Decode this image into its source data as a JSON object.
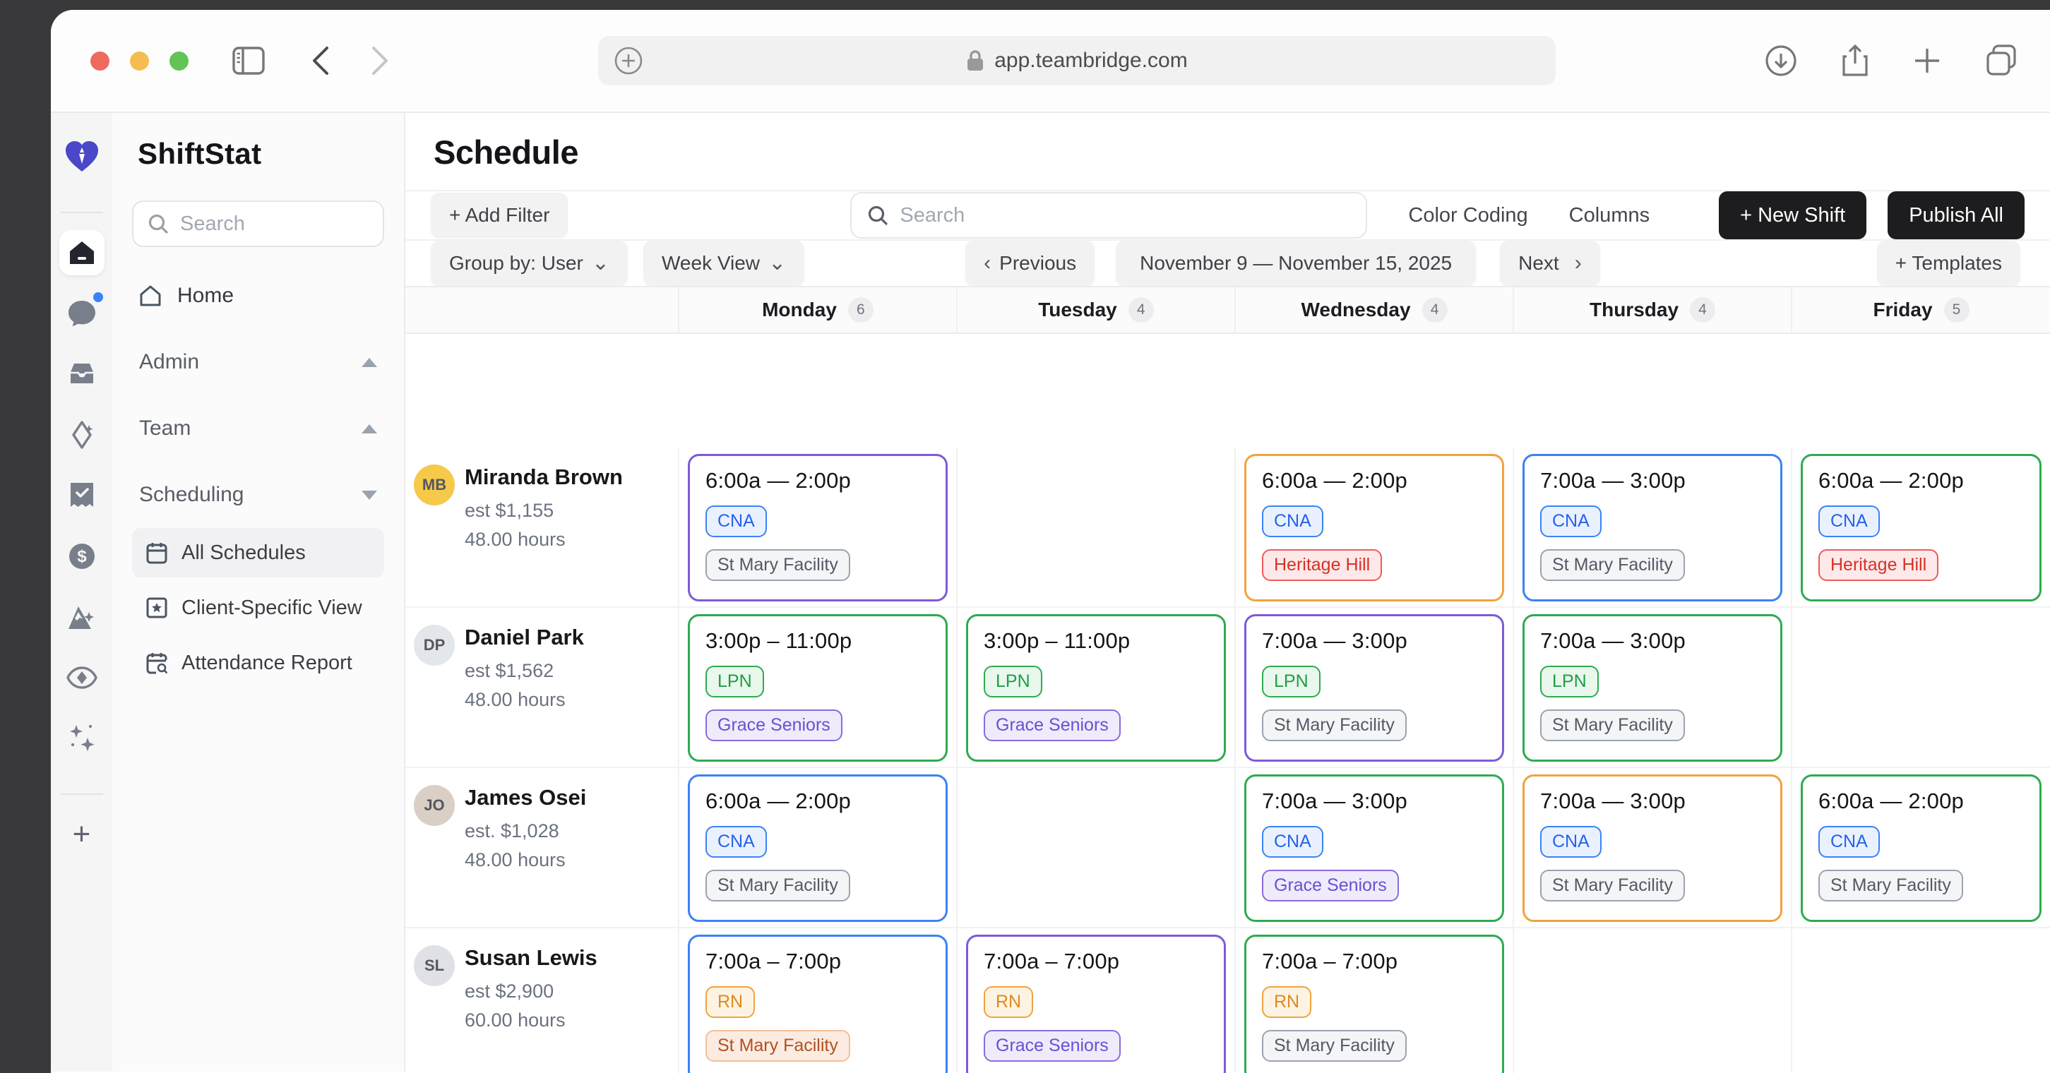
{
  "browser": {
    "url": "app.teambridge.com",
    "icons": [
      "sidebar-toggle",
      "back",
      "forward",
      "page-plus",
      "lock",
      "download",
      "share",
      "new-tab",
      "tab-overview"
    ]
  },
  "sidebar": {
    "logo_text": "ShiftStat",
    "search_placeholder": "Search",
    "home_label": "Home",
    "sections": [
      {
        "label": "Admin",
        "state": "collapsed"
      },
      {
        "label": "Team",
        "state": "collapsed"
      },
      {
        "label": "Scheduling",
        "state": "expanded"
      }
    ],
    "scheduling_items": [
      {
        "label": "All Schedules",
        "icon": "calendar",
        "active": true
      },
      {
        "label": "Client-Specific View",
        "icon": "star-square",
        "active": false
      },
      {
        "label": "Attendance Report",
        "icon": "calendar-search",
        "active": false
      }
    ],
    "rail_icons": [
      "shiftstat-logo",
      "home",
      "chat",
      "inbox",
      "diamond",
      "ticket-check",
      "dollar",
      "mountain",
      "eye",
      "sparkles",
      "add"
    ]
  },
  "page": {
    "title": "Schedule"
  },
  "filter_bar": {
    "add_filter": "+ Add Filter",
    "search_placeholder": "Search",
    "color_coding": "Color Coding",
    "columns": "Columns",
    "new_shift": "+ New Shift",
    "publish_all": "Publish All"
  },
  "toolbar": {
    "group_by": "Group by: User",
    "view": "Week View",
    "previous": "Previous",
    "date_range": "November 9 —  November 15, 2025",
    "next": "Next",
    "templates": "+ Templates"
  },
  "week": {
    "days": [
      {
        "label": "Monday",
        "count": "6"
      },
      {
        "label": "Tuesday",
        "count": "4"
      },
      {
        "label": "Wednesday",
        "count": "4"
      },
      {
        "label": "Thursday",
        "count": "4"
      },
      {
        "label": "Friday",
        "count": "5"
      }
    ]
  },
  "palette": {
    "card": {
      "purple": "#7d5bd8",
      "blue": "#3b82f6",
      "green": "#2eab4f",
      "orange": "#f0a33f"
    },
    "badge": {
      "blue": {
        "border": "#3b82f6",
        "bg": "#eaf1fe",
        "text": "#2563eb"
      },
      "green": {
        "border": "#2eab4f",
        "bg": "#e9f7ed",
        "text": "#1f9e45"
      },
      "orange": {
        "border": "#f0a33f",
        "bg": "#fdf3e2",
        "text": "#dd8a1e"
      },
      "red": {
        "border": "#ee5b5b",
        "bg": "#fde9e9",
        "text": "#d93025"
      },
      "purple": {
        "border": "#8b6ae0",
        "bg": "#efebfb",
        "text": "#6d4fd2"
      },
      "gray": {
        "border": "#9ca3af",
        "bg": "#f4f5f7",
        "text": "#525a65"
      },
      "peach": {
        "border": "#f3c09a",
        "bg": "#fcebe0",
        "text": "#b05223"
      }
    }
  },
  "users": [
    {
      "name": "Miranda Brown",
      "estimate": "est $1,155",
      "hours": "48.00 hours",
      "initials": "MB",
      "avatar_bg": "#f6c94a",
      "shifts": [
        {
          "time": "6:00a — 2:00p",
          "card": "purple",
          "role": "CNA",
          "role_variant": "blue",
          "facility": "St Mary Facility",
          "facility_variant": "gray"
        },
        null,
        {
          "time": "6:00a — 2:00p",
          "card": "orange",
          "role": "CNA",
          "role_variant": "blue",
          "facility": "Heritage Hill",
          "facility_variant": "red"
        },
        {
          "time": "7:00a — 3:00p",
          "card": "blue",
          "role": "CNA",
          "role_variant": "blue",
          "facility": "St Mary Facility",
          "facility_variant": "gray"
        },
        {
          "time": "6:00a — 2:00p",
          "card": "green",
          "role": "CNA",
          "role_variant": "blue",
          "facility": "Heritage Hill",
          "facility_variant": "red"
        }
      ]
    },
    {
      "name": "Daniel Park",
      "estimate": "est $1,562",
      "hours": "48.00 hours",
      "initials": "DP",
      "avatar_bg": "#e3e6ea",
      "shifts": [
        {
          "time": "3:00p – 11:00p",
          "card": "green",
          "role": "LPN",
          "role_variant": "green",
          "facility": "Grace Seniors",
          "facility_variant": "purple"
        },
        {
          "time": "3:00p – 11:00p",
          "card": "green",
          "role": "LPN",
          "role_variant": "green",
          "facility": "Grace Seniors",
          "facility_variant": "purple"
        },
        {
          "time": "7:00a — 3:00p",
          "card": "purple",
          "role": "LPN",
          "role_variant": "green",
          "facility": "St Mary Facility",
          "facility_variant": "gray"
        },
        {
          "time": "7:00a — 3:00p",
          "card": "green",
          "role": "LPN",
          "role_variant": "green",
          "facility": "St Mary Facility",
          "facility_variant": "gray"
        },
        null
      ]
    },
    {
      "name": "James Osei",
      "estimate": "est. $1,028",
      "hours": "48.00 hours",
      "initials": "JO",
      "avatar_bg": "#d9cfc4",
      "shifts": [
        {
          "time": "6:00a — 2:00p",
          "card": "blue",
          "role": "CNA",
          "role_variant": "blue",
          "facility": "St Mary Facility",
          "facility_variant": "gray"
        },
        null,
        {
          "time": "7:00a — 3:00p",
          "card": "green",
          "role": "CNA",
          "role_variant": "blue",
          "facility": "Grace Seniors",
          "facility_variant": "purple"
        },
        {
          "time": "7:00a — 3:00p",
          "card": "orange",
          "role": "CNA",
          "role_variant": "blue",
          "facility": "St Mary Facility",
          "facility_variant": "gray"
        },
        {
          "time": "6:00a — 2:00p",
          "card": "green",
          "role": "CNA",
          "role_variant": "blue",
          "facility": "St Mary Facility",
          "facility_variant": "gray"
        }
      ]
    },
    {
      "name": "Susan Lewis",
      "estimate": "est $2,900",
      "hours": "60.00 hours",
      "initials": "SL",
      "avatar_bg": "#dfe1e6",
      "shifts": [
        {
          "time": "7:00a – 7:00p",
          "card": "blue",
          "role": "RN",
          "role_variant": "orange",
          "facility": "St Mary Facility",
          "facility_variant": "peach"
        },
        {
          "time": "7:00a – 7:00p",
          "card": "purple",
          "role": "RN",
          "role_variant": "orange",
          "facility": "Grace Seniors",
          "facility_variant": "purple"
        },
        {
          "time": "7:00a – 7:00p",
          "card": "green",
          "role": "RN",
          "role_variant": "orange",
          "facility": "St Mary Facility",
          "facility_variant": "gray"
        },
        null,
        null
      ]
    }
  ]
}
